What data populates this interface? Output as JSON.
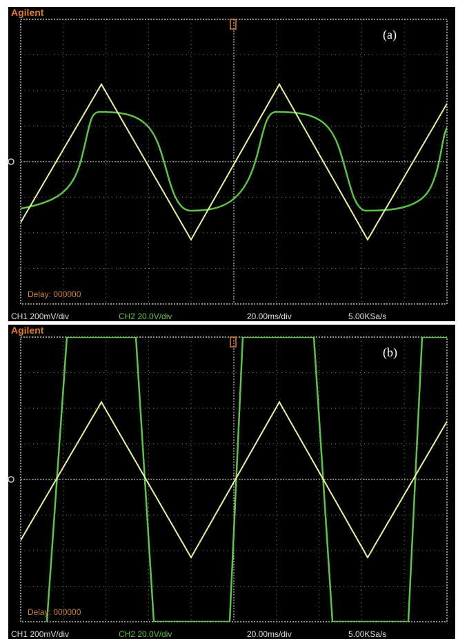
{
  "panels": [
    {
      "brand": "Agilent",
      "label": "(a)",
      "delay": "Delay: 000000",
      "status": [
        "CH1 200mV/div",
        "CH2 20.0V/div",
        "20.00ms/div",
        "5.00KSa/s"
      ]
    },
    {
      "brand": "Agilent",
      "label": "(b)",
      "delay": "Delay: 000000",
      "status": [
        "CH1 200mV/div",
        "CH2 20.0V/div",
        "20.00ms/div",
        "5.00KSa/s"
      ]
    }
  ]
}
